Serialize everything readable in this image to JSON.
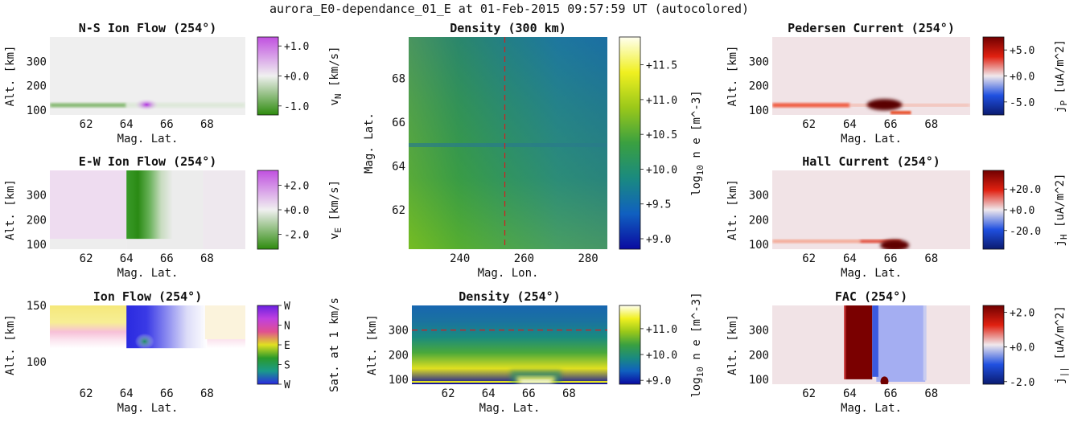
{
  "figure_title": "aurora_E0-dependance_01_E at 01-Feb-2015 09:57:59 UT (autocolored)",
  "chart_data": [
    {
      "id": "ns_ion_flow",
      "type": "heatmap",
      "title": "N-S Ion Flow (254°)",
      "xlabel": "Mag. Lat.",
      "ylabel": "Alt. [km]",
      "xticks": [
        "62",
        "64",
        "66",
        "68"
      ],
      "yticks": [
        "100",
        "200",
        "300"
      ],
      "xlim": [
        60.2,
        69.9
      ],
      "ylim": [
        80,
        400
      ],
      "colorbar": {
        "label_main": "v",
        "label_sub": "N",
        "label_unit": "[km/s]",
        "ticks": [
          "+1.0",
          "+0.0",
          "-1.0"
        ],
        "tick_values": [
          1,
          0,
          -1
        ],
        "range": [
          -1.3,
          1.3
        ],
        "colormap": "green-white-purple",
        "colors": [
          "#2e8b0e",
          "#f0f0f0",
          "#c050e0"
        ]
      }
    },
    {
      "id": "ew_ion_flow",
      "type": "heatmap",
      "title": "E-W Ion Flow (254°)",
      "xlabel": "Mag. Lat.",
      "ylabel": "Alt. [km]",
      "xticks": [
        "62",
        "64",
        "66",
        "68"
      ],
      "yticks": [
        "100",
        "200",
        "300"
      ],
      "xlim": [
        60.2,
        69.9
      ],
      "ylim": [
        80,
        400
      ],
      "colorbar": {
        "label_main": "v",
        "label_sub": "E",
        "label_unit": "[km/s]",
        "ticks": [
          "+2.0",
          "+0.0",
          "-2.0"
        ],
        "tick_values": [
          2,
          0,
          -2
        ],
        "range": [
          -3.2,
          3.2
        ],
        "colormap": "green-white-purple",
        "colors": [
          "#2e8b0e",
          "#f0f0f0",
          "#c050e0"
        ]
      }
    },
    {
      "id": "ion_flow",
      "type": "heatmap",
      "title": "Ion Flow (254°)",
      "xlabel": "Mag. Lat.",
      "ylabel": "Alt. [km]",
      "xticks": [
        "62",
        "64",
        "66",
        "68"
      ],
      "yticks": [
        "100",
        "150"
      ],
      "xlim": [
        60.2,
        69.9
      ],
      "ylim": [
        80,
        150
      ],
      "colorbar": {
        "label_main": "Sat. at 1 km/s",
        "label_sub": "",
        "label_unit": "",
        "ticks": [
          "W",
          "N",
          "E",
          "S",
          "W"
        ],
        "tick_values": [
          1,
          0.75,
          0.5,
          0.25,
          0
        ],
        "range": [
          0,
          1
        ],
        "colormap": "direction-hue",
        "colors": [
          "#2a2ae0",
          "#1a9a8a",
          "#2a9a2a",
          "#e0e020",
          "#e05090",
          "#c040e0",
          "#6a20e0"
        ]
      }
    },
    {
      "id": "density_300km",
      "type": "heatmap",
      "title": "Density (300 km)",
      "xlabel": "Mag. Lon.",
      "ylabel": "Mag. Lat.",
      "xticks": [
        "240",
        "260",
        "280"
      ],
      "yticks": [
        "62",
        "64",
        "66",
        "68"
      ],
      "xlim": [
        224,
        286
      ],
      "ylim": [
        60.2,
        69.9
      ],
      "marker_line": {
        "orientation": "vertical",
        "value": 254,
        "color": "#d02020"
      },
      "colorbar": {
        "label_main": "log",
        "label_sub": "10",
        "label_unit": "n e [m^-3]",
        "ticks": [
          "+11.5",
          "+11.0",
          "+10.5",
          "+10.0",
          "+9.5",
          "+9.0"
        ],
        "tick_values": [
          11.5,
          11.0,
          10.5,
          10.0,
          9.5,
          9.0
        ],
        "range": [
          8.85,
          11.9
        ],
        "colormap": "viridis-like",
        "colors": [
          "#0a0aa0",
          "#1060c0",
          "#1a8a80",
          "#3aa040",
          "#9ac81a",
          "#f0f020",
          "#fffff0"
        ]
      }
    },
    {
      "id": "density_254",
      "type": "heatmap",
      "title": "Density (254°)",
      "xlabel": "Mag. Lat.",
      "ylabel": "Alt. [km]",
      "xticks": [
        "62",
        "64",
        "66",
        "68"
      ],
      "yticks": [
        "100",
        "200",
        "300"
      ],
      "xlim": [
        60.2,
        69.9
      ],
      "ylim": [
        80,
        400
      ],
      "marker_line": {
        "orientation": "horizontal",
        "value": 300,
        "color": "#d02020"
      },
      "colorbar": {
        "label_main": "log",
        "label_sub": "10",
        "label_unit": "n e [m^-3]",
        "ticks": [
          "+11.0",
          "+10.0",
          "+9.0"
        ],
        "tick_values": [
          11,
          10,
          9
        ],
        "range": [
          8.85,
          11.9
        ],
        "colormap": "viridis-like",
        "colors": [
          "#0a0aa0",
          "#1060c0",
          "#1a8a80",
          "#3aa040",
          "#9ac81a",
          "#f0f020",
          "#fffff0"
        ]
      }
    },
    {
      "id": "pedersen_current",
      "type": "heatmap",
      "title": "Pedersen Current (254°)",
      "xlabel": "Mag. Lat.",
      "ylabel": "Alt. [km]",
      "xticks": [
        "62",
        "64",
        "66",
        "68"
      ],
      "yticks": [
        "100",
        "200",
        "300"
      ],
      "xlim": [
        60.2,
        69.9
      ],
      "ylim": [
        80,
        400
      ],
      "colorbar": {
        "label_main": "j",
        "label_sub": "P",
        "label_unit": "[uA/m^2]",
        "ticks": [
          "+5.0",
          "+0.0",
          "-5.0"
        ],
        "tick_values": [
          5,
          0,
          -5
        ],
        "range": [
          -7.5,
          7.5
        ],
        "colormap": "blue-white-red",
        "colors": [
          "#0a1a70",
          "#2050e0",
          "#f0e8ec",
          "#e02010",
          "#700000"
        ]
      }
    },
    {
      "id": "hall_current",
      "type": "heatmap",
      "title": "Hall Current (254°)",
      "xlabel": "Mag. Lat.",
      "ylabel": "Alt. [km]",
      "xticks": [
        "62",
        "64",
        "66",
        "68"
      ],
      "yticks": [
        "100",
        "200",
        "300"
      ],
      "xlim": [
        60.2,
        69.9
      ],
      "ylim": [
        80,
        400
      ],
      "colorbar": {
        "label_main": "j",
        "label_sub": "H",
        "label_unit": "[uA/m^2]",
        "ticks": [
          "+20.0",
          "+0.0",
          "-20.0"
        ],
        "tick_values": [
          20,
          0,
          -20
        ],
        "range": [
          -38,
          38
        ],
        "colormap": "blue-white-red",
        "colors": [
          "#0a1a70",
          "#2050e0",
          "#f0e8ec",
          "#e02010",
          "#700000"
        ]
      }
    },
    {
      "id": "fac",
      "type": "heatmap",
      "title": "FAC (254°)",
      "xlabel": "Mag. Lat.",
      "ylabel": "Alt. [km]",
      "xticks": [
        "62",
        "64",
        "66",
        "68"
      ],
      "yticks": [
        "100",
        "200",
        "300"
      ],
      "xlim": [
        60.2,
        69.9
      ],
      "ylim": [
        80,
        400
      ],
      "colorbar": {
        "label_main": "j",
        "label_sub": "||",
        "label_unit": "[uA/m^2]",
        "ticks": [
          "+2.0",
          "+0.0",
          "-2.0"
        ],
        "tick_values": [
          2,
          0,
          -2
        ],
        "range": [
          -2.15,
          2.4
        ],
        "colormap": "blue-white-red",
        "colors": [
          "#0a1a70",
          "#2050e0",
          "#f0e8ec",
          "#e02010",
          "#700000"
        ]
      }
    }
  ]
}
